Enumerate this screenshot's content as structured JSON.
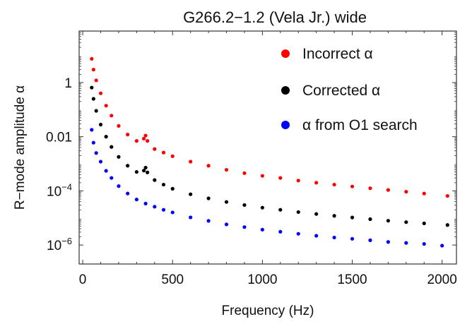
{
  "chart_data": {
    "type": "scatter",
    "title": "G266.2−1.2 (Vela Jr.) wide",
    "xlabel": "Frequency (Hz)",
    "ylabel": "R−mode amplitude α",
    "xlim": [
      -20,
      2080
    ],
    "ylim_log10": [
      -6.7,
      1.9
    ],
    "y_scale": "log",
    "x_ticks": [
      {
        "value": 0,
        "label": "0"
      },
      {
        "value": 500,
        "label": "500"
      },
      {
        "value": 1000,
        "label": "1000"
      },
      {
        "value": 1500,
        "label": "1500"
      },
      {
        "value": 2000,
        "label": "2000"
      }
    ],
    "y_ticks": [
      {
        "log10": 0,
        "base": "1",
        "exp": ""
      },
      {
        "log10": -2,
        "base": "0.01",
        "exp": ""
      },
      {
        "log10": -4,
        "base": "10",
        "exp": "−4"
      },
      {
        "log10": -6,
        "base": "10",
        "exp": "−6"
      }
    ],
    "grid": false,
    "legend_position": "top-right",
    "series": [
      {
        "name": "Incorrect α",
        "color": "#ff0000",
        "x": [
          50,
          60,
          75,
          100,
          130,
          160,
          200,
          250,
          300,
          340,
          350,
          360,
          400,
          450,
          500,
          600,
          700,
          800,
          900,
          1000,
          1100,
          1200,
          1300,
          1400,
          1500,
          1600,
          1700,
          1800,
          1900,
          2030
        ],
        "y": [
          7.5,
          3.0,
          1.2,
          0.4,
          0.14,
          0.06,
          0.025,
          0.012,
          0.007,
          0.0085,
          0.011,
          0.007,
          0.0035,
          0.0026,
          0.0019,
          0.0012,
          0.00085,
          0.0006,
          0.00045,
          0.00036,
          0.0003,
          0.00024,
          0.0002,
          0.00017,
          0.000145,
          0.000125,
          0.000108,
          9.3e-05,
          8e-05,
          6.5e-05
        ]
      },
      {
        "name": "Corrected α",
        "color": "#000000",
        "x": [
          50,
          60,
          75,
          100,
          130,
          160,
          200,
          250,
          300,
          340,
          350,
          360,
          400,
          450,
          500,
          600,
          700,
          800,
          900,
          1000,
          1100,
          1200,
          1300,
          1400,
          1500,
          1600,
          1700,
          1800,
          1900,
          2030
        ],
        "y": [
          0.65,
          0.25,
          0.09,
          0.028,
          0.01,
          0.0042,
          0.0018,
          0.00085,
          0.0005,
          0.00056,
          0.00072,
          0.00048,
          0.00025,
          0.00017,
          0.00012,
          7.5e-05,
          5.3e-05,
          3.9e-05,
          3e-05,
          2.4e-05,
          2e-05,
          1.65e-05,
          1.4e-05,
          1.2e-05,
          1.04e-05,
          9e-06,
          7.9e-06,
          7e-06,
          6.3e-06,
          5.5e-06
        ]
      },
      {
        "name": "α from O1 search",
        "color": "#0000ff",
        "x": [
          50,
          60,
          75,
          100,
          130,
          160,
          200,
          250,
          300,
          350,
          400,
          450,
          500,
          600,
          700,
          800,
          900,
          1000,
          1100,
          1200,
          1300,
          1400,
          1500,
          1600,
          1700,
          1800,
          1900,
          2000
        ],
        "y": [
          0.018,
          0.006,
          0.0025,
          0.0012,
          0.00055,
          0.0003,
          0.00015,
          8e-05,
          4.8e-05,
          3.4e-05,
          2.6e-05,
          2e-05,
          1.6e-05,
          1.05e-05,
          7.8e-06,
          5.8e-06,
          4.6e-06,
          3.7e-06,
          3.1e-06,
          2.6e-06,
          2.2e-06,
          1.9e-06,
          1.7e-06,
          1.5e-06,
          1.3e-06,
          1.2e-06,
          1.1e-06,
          9.5e-07
        ]
      }
    ]
  }
}
